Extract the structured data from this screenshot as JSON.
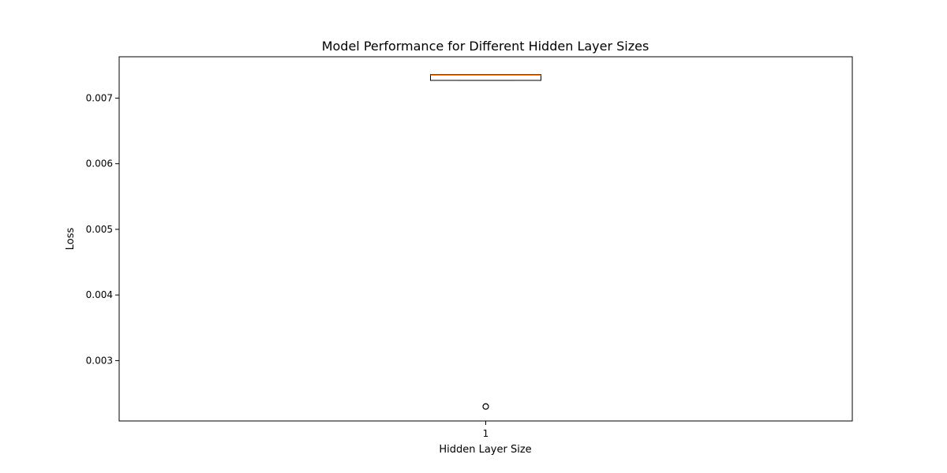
{
  "chart_data": {
    "type": "box",
    "title": "Model Performance for Different Hidden Layer Sizes",
    "xlabel": "Hidden Layer Size",
    "ylabel": "Loss",
    "categories": [
      "1"
    ],
    "ylim": [
      0.00208,
      0.00763
    ],
    "yticks": [
      0.003,
      0.004,
      0.005,
      0.006,
      0.007
    ],
    "ytick_labels": [
      "0.003",
      "0.004",
      "0.005",
      "0.006",
      "0.007"
    ],
    "boxes": [
      {
        "category": "1",
        "whisker_low": 0.00727,
        "q1": 0.00727,
        "median": 0.00735,
        "q3": 0.00736,
        "whisker_high": 0.00736,
        "outliers": [
          0.0023,
          0.0023,
          0.0023
        ]
      }
    ],
    "grid": false,
    "colors": {
      "box": "#000000",
      "median": "#ff7f0e",
      "outlier": "#000000"
    }
  }
}
